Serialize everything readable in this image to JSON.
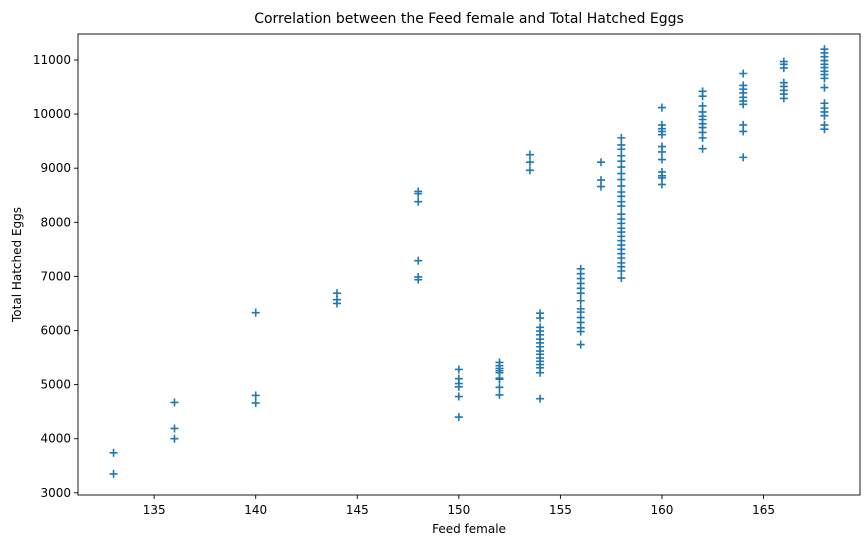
{
  "chart_data": {
    "type": "scatter",
    "title": "Correlation between the Feed female and Total Hatched Eggs",
    "xlabel": "Feed female",
    "ylabel": "Total Hatched Eggs",
    "xlim": [
      131.25,
      169.75
    ],
    "ylim": [
      2960,
      11480
    ],
    "xticks": [
      135,
      140,
      145,
      150,
      155,
      160,
      165
    ],
    "yticks": [
      3000,
      4000,
      5000,
      6000,
      7000,
      8000,
      9000,
      10000,
      11000
    ],
    "marker": "+",
    "color": "#1f77b4",
    "grid": false,
    "points": [
      [
        133,
        3740
      ],
      [
        133,
        3350
      ],
      [
        136,
        4670
      ],
      [
        136,
        4190
      ],
      [
        136,
        4000
      ],
      [
        140,
        6330
      ],
      [
        140,
        4800
      ],
      [
        140,
        4660
      ],
      [
        144,
        6690
      ],
      [
        144,
        6570
      ],
      [
        144,
        6500
      ],
      [
        148,
        8570
      ],
      [
        148,
        8530
      ],
      [
        148,
        8380
      ],
      [
        148,
        7290
      ],
      [
        148,
        6990
      ],
      [
        148,
        6940
      ],
      [
        150,
        5280
      ],
      [
        150,
        5110
      ],
      [
        150,
        5020
      ],
      [
        150,
        4960
      ],
      [
        150,
        4780
      ],
      [
        150,
        4400
      ],
      [
        152,
        5410
      ],
      [
        152,
        5350
      ],
      [
        152,
        5300
      ],
      [
        152,
        5260
      ],
      [
        152,
        5220
      ],
      [
        152,
        5120
      ],
      [
        152,
        5100
      ],
      [
        152,
        4950
      ],
      [
        152,
        4810
      ],
      [
        153.5,
        9250
      ],
      [
        153.5,
        9110
      ],
      [
        153.5,
        8960
      ],
      [
        154,
        6320
      ],
      [
        154,
        6230
      ],
      [
        154,
        6060
      ],
      [
        154,
        5990
      ],
      [
        154,
        5920
      ],
      [
        154,
        5840
      ],
      [
        154,
        5770
      ],
      [
        154,
        5700
      ],
      [
        154,
        5620
      ],
      [
        154,
        5560
      ],
      [
        154,
        5490
      ],
      [
        154,
        5430
      ],
      [
        154,
        5370
      ],
      [
        154,
        5310
      ],
      [
        154,
        5220
      ],
      [
        154,
        4740
      ],
      [
        156,
        7140
      ],
      [
        156,
        7050
      ],
      [
        156,
        6960
      ],
      [
        156,
        6870
      ],
      [
        156,
        6780
      ],
      [
        156,
        6690
      ],
      [
        156,
        6550
      ],
      [
        156,
        6400
      ],
      [
        156,
        6340
      ],
      [
        156,
        6240
      ],
      [
        156,
        6150
      ],
      [
        156,
        6050
      ],
      [
        156,
        5980
      ],
      [
        156,
        5740
      ],
      [
        157,
        9110
      ],
      [
        157,
        8780
      ],
      [
        157,
        8660
      ],
      [
        158,
        9560
      ],
      [
        158,
        9430
      ],
      [
        158,
        9350
      ],
      [
        158,
        9230
      ],
      [
        158,
        9130
      ],
      [
        158,
        9020
      ],
      [
        158,
        8900
      ],
      [
        158,
        8790
      ],
      [
        158,
        8670
      ],
      [
        158,
        8560
      ],
      [
        158,
        8480
      ],
      [
        158,
        8380
      ],
      [
        158,
        8300
      ],
      [
        158,
        8150
      ],
      [
        158,
        8060
      ],
      [
        158,
        7980
      ],
      [
        158,
        7890
      ],
      [
        158,
        7820
      ],
      [
        158,
        7740
      ],
      [
        158,
        7660
      ],
      [
        158,
        7580
      ],
      [
        158,
        7500
      ],
      [
        158,
        7420
      ],
      [
        158,
        7340
      ],
      [
        158,
        7250
      ],
      [
        158,
        7180
      ],
      [
        158,
        7100
      ],
      [
        158,
        6970
      ],
      [
        160,
        10120
      ],
      [
        160,
        9800
      ],
      [
        160,
        9730
      ],
      [
        160,
        9680
      ],
      [
        160,
        9620
      ],
      [
        160,
        9400
      ],
      [
        160,
        9300
      ],
      [
        160,
        9160
      ],
      [
        160,
        8930
      ],
      [
        160,
        8860
      ],
      [
        160,
        8820
      ],
      [
        160,
        8700
      ],
      [
        162,
        10420
      ],
      [
        162,
        10330
      ],
      [
        162,
        10150
      ],
      [
        162,
        10040
      ],
      [
        162,
        9960
      ],
      [
        162,
        9900
      ],
      [
        162,
        9820
      ],
      [
        162,
        9750
      ],
      [
        162,
        9660
      ],
      [
        162,
        9560
      ],
      [
        162,
        9360
      ],
      [
        164,
        10750
      ],
      [
        164,
        10530
      ],
      [
        164,
        10460
      ],
      [
        164,
        10390
      ],
      [
        164,
        10310
      ],
      [
        164,
        10240
      ],
      [
        164,
        10180
      ],
      [
        164,
        9800
      ],
      [
        164,
        9680
      ],
      [
        164,
        9200
      ],
      [
        166,
        10970
      ],
      [
        166,
        10920
      ],
      [
        166,
        10850
      ],
      [
        166,
        10580
      ],
      [
        166,
        10510
      ],
      [
        166,
        10440
      ],
      [
        166,
        10370
      ],
      [
        166,
        10290
      ],
      [
        168,
        11200
      ],
      [
        168,
        11130
      ],
      [
        168,
        11060
      ],
      [
        168,
        10990
      ],
      [
        168,
        10920
      ],
      [
        168,
        10860
      ],
      [
        168,
        10790
      ],
      [
        168,
        10730
      ],
      [
        168,
        10660
      ],
      [
        168,
        10490
      ],
      [
        168,
        10200
      ],
      [
        168,
        10110
      ],
      [
        168,
        10040
      ],
      [
        168,
        9970
      ],
      [
        168,
        9800
      ],
      [
        168,
        9720
      ]
    ]
  }
}
